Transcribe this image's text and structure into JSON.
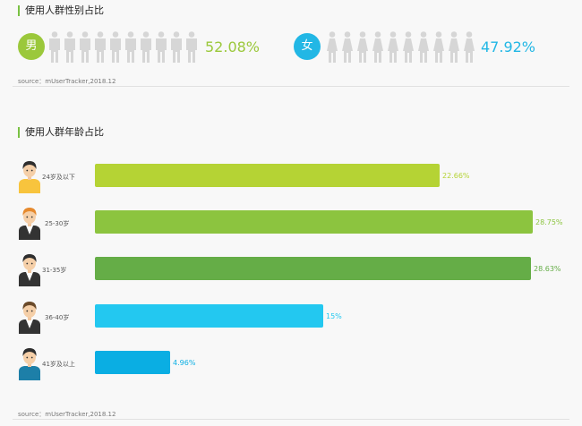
{
  "gender_section": {
    "title": "使用人群性别占比",
    "male": {
      "symbol": "男",
      "percent": "52.08%",
      "color": "#9bc83b"
    },
    "female": {
      "symbol": "女",
      "percent": "47.92%",
      "color": "#22b7e5"
    },
    "source": "source：mUserTracker,2018.12"
  },
  "age_section": {
    "title": "使用人群年龄占比",
    "source": "source：mUserTracker,2018.12"
  },
  "chart_data": [
    {
      "type": "bar",
      "categories": [
        "男",
        "女"
      ],
      "values": [
        52.08,
        47.92
      ],
      "title": "使用人群性别占比"
    },
    {
      "type": "bar",
      "orientation": "horizontal",
      "title": "使用人群年龄占比",
      "categories": [
        "24岁及以下",
        "25-30岁",
        "31-35岁",
        "36-40岁",
        "41岁及以上"
      ],
      "values": [
        22.66,
        28.75,
        28.63,
        15,
        4.96
      ],
      "value_labels": [
        "22.66%",
        "28.75%",
        "28.63%",
        "15%",
        "4.96%"
      ],
      "colors": [
        "#b5d334",
        "#8cc43f",
        "#65ad47",
        "#23c8f0",
        "#0aaee3"
      ],
      "max": 28.75
    }
  ]
}
